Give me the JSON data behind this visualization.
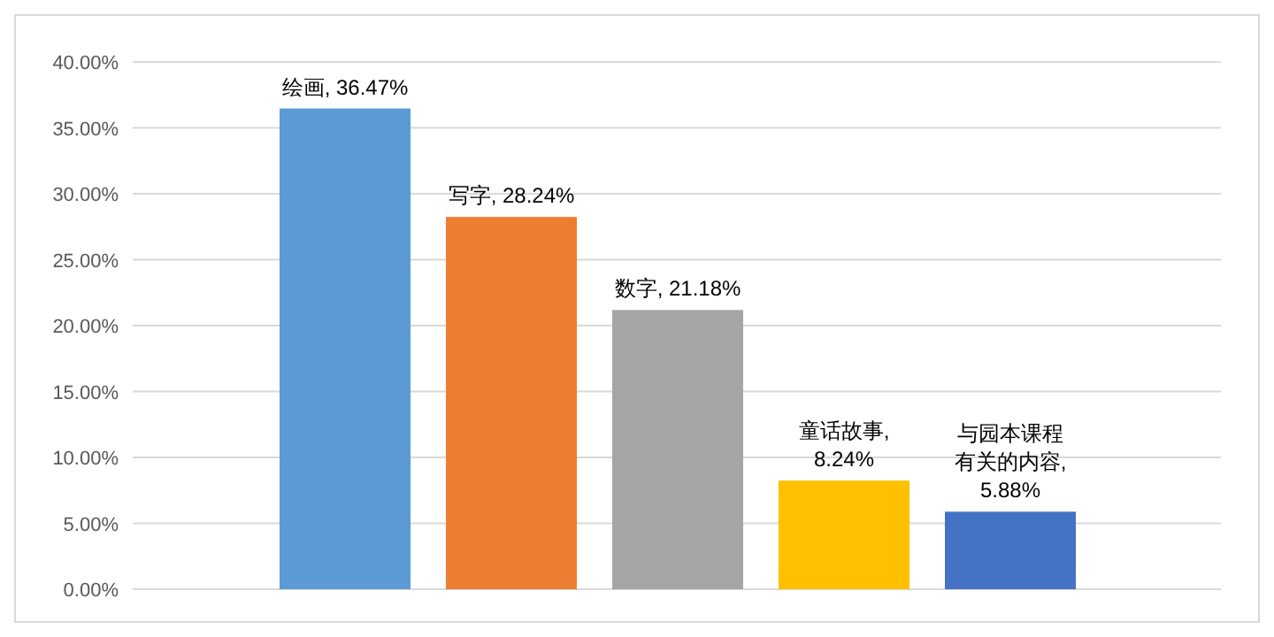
{
  "chart_data": {
    "type": "bar",
    "categories": [
      null,
      null,
      null,
      null,
      null
    ],
    "values": [
      36.47,
      28.24,
      21.18,
      8.24,
      5.88
    ],
    "colors": [
      "#5b9bd5",
      "#ed7d31",
      "#a5a5a5",
      "#ffc000",
      "#4472c4"
    ],
    "value_labels": [
      "绘画, 36.47%",
      "写字, 28.24%",
      "数字, 21.18%",
      "童话故事, 8.24%",
      "与园本课程有关的内容, 5.88%"
    ],
    "ylim": [
      0,
      40
    ],
    "yticks": [
      {
        "value": 0,
        "label": "0.00%"
      },
      {
        "value": 5,
        "label": "5.00%"
      },
      {
        "value": 10,
        "label": "10.00%"
      },
      {
        "value": 15,
        "label": "15.00%"
      },
      {
        "value": 20,
        "label": "20.00%"
      },
      {
        "value": 25,
        "label": "25.00%"
      },
      {
        "value": 30,
        "label": "30.00%"
      },
      {
        "value": 35,
        "label": "35.00%"
      },
      {
        "value": 40,
        "label": "40.00%"
      }
    ],
    "grid": "y"
  }
}
